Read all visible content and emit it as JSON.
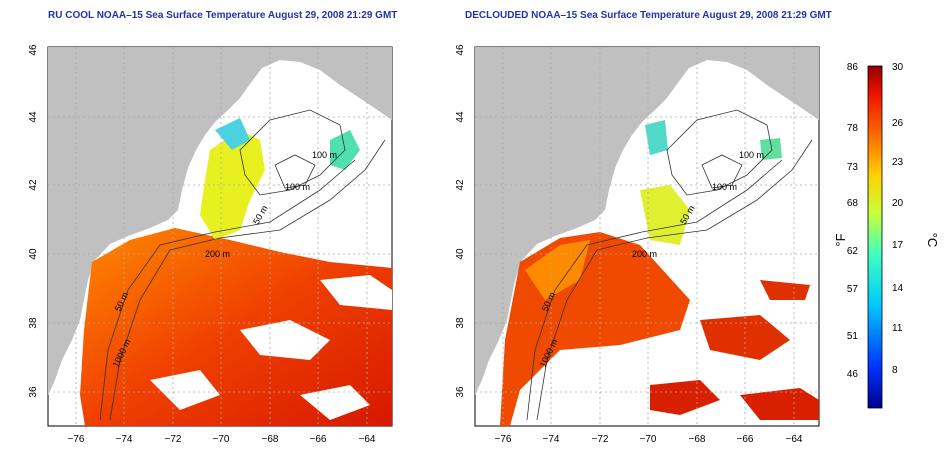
{
  "left_panel": {
    "title": "RU COOL NOAA–15 Sea Surface Temperature August 29, 2008 21:29 GMT",
    "contours": [
      "100 m",
      "100 m",
      "50 m",
      "200 m",
      "50 m",
      "1000 m"
    ]
  },
  "right_panel": {
    "title": "DECLOUDED NOAA–15 Sea Surface Temperature August 29, 2008 21:29 GMT",
    "contours": [
      "100 m",
      "100 m",
      "50 m",
      "200 m",
      "50 m",
      "1000 m"
    ]
  },
  "axes": {
    "lat_ticks": [
      "46",
      "44",
      "42",
      "40",
      "38",
      "36"
    ],
    "lon_ticks": [
      "−76",
      "−74",
      "−72",
      "−70",
      "−68",
      "−66",
      "−64"
    ]
  },
  "colorbar": {
    "fahrenheit_label": "°F",
    "celsius_label": "°C",
    "fahrenheit_ticks": [
      "86",
      "78",
      "73",
      "68",
      "62",
      "57",
      "51",
      "46"
    ],
    "celsius_ticks": [
      "30",
      "26",
      "23",
      "20",
      "17",
      "14",
      "11",
      "8"
    ]
  },
  "colors": {
    "land": "#c0c0c0",
    "grid": "#aaaaaa",
    "title": "#2233aa"
  }
}
